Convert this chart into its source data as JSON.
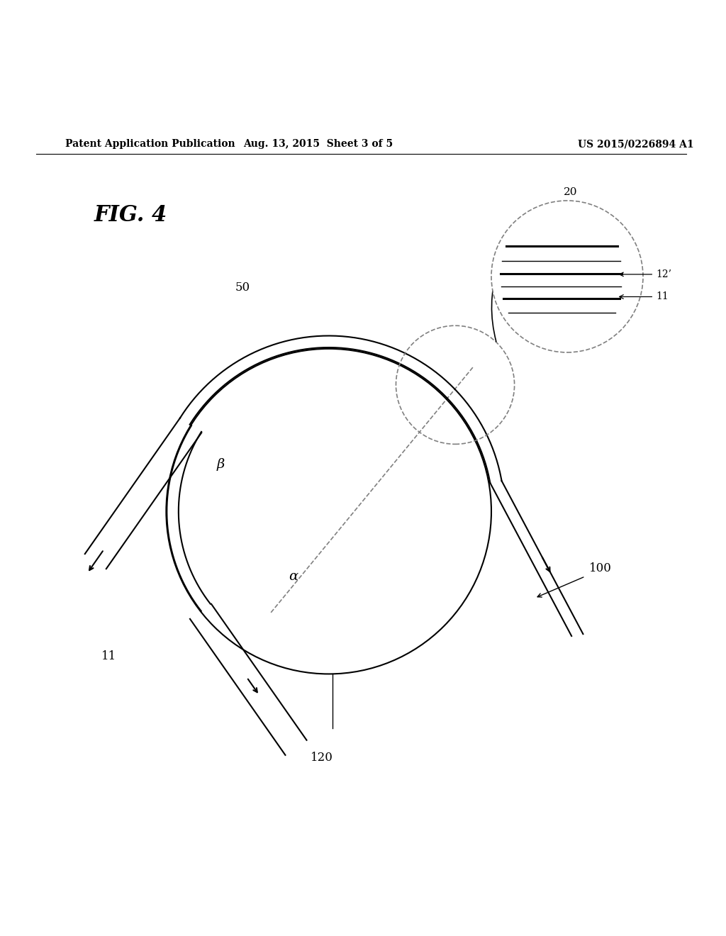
{
  "title": "FIG. 4",
  "header_left": "Patent Application Publication",
  "header_center": "Aug. 13, 2015  Sheet 3 of 5",
  "header_right": "US 2015/0226894 A1",
  "bg_color": "#ffffff",
  "text_color": "#000000",
  "line_color": "#000000",
  "dashed_color": "#888888",
  "labels": {
    "fig": "FIG. 4",
    "50": "50",
    "11": "11",
    "100": "100",
    "120": "120",
    "20": "20",
    "12p": "12’",
    "11_inset": "11",
    "alpha": "α",
    "beta": "β"
  }
}
